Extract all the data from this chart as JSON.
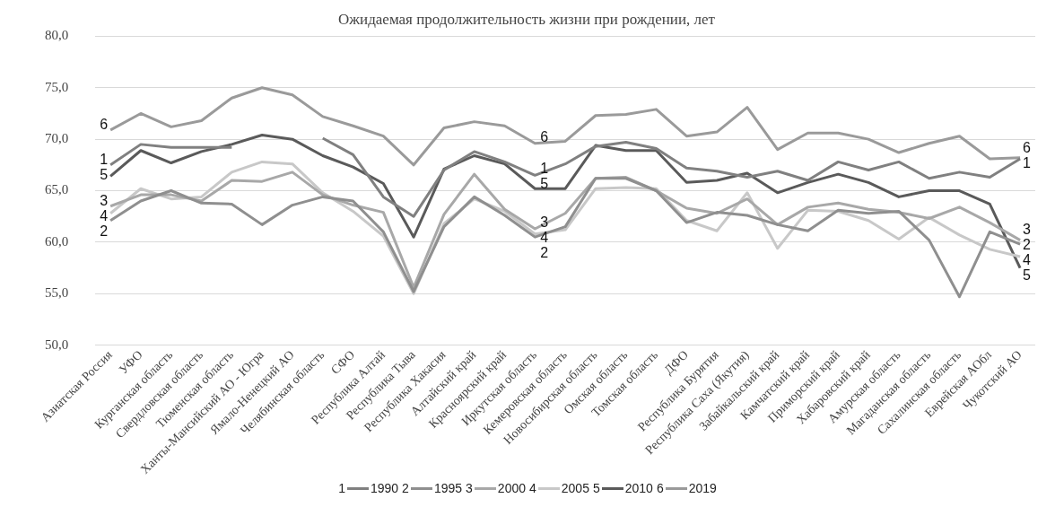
{
  "chart_data": {
    "type": "line",
    "title": "Ожидаемая продолжительность жизни при рождении, лет",
    "categories": [
      "Азиатская Россия",
      "УФО",
      "Курганская область",
      "Свердловская область",
      "Тюменская область",
      "Ханты-Мансийский АО - Югра",
      "Ямало-Ненецкий АО",
      "Челябинская область",
      "СФО",
      "Республика Алтай",
      "Республика Тыва",
      "Республика Хакасия",
      "Алтайский край",
      "Красноярский край",
      "Иркутская область",
      "Кемеровская область",
      "Новосибирская область",
      "Омская область",
      "Томская область",
      "ДФО",
      "Республика Бурятия",
      "Республика Саха (Якутия)",
      "Забайкальский край",
      "Камчатский край",
      "Приморский край",
      "Хабаровский край",
      "Амурская область",
      "Магаданская область",
      "Сахалинская область",
      "Еврейская АОбл",
      "Чукотский АО"
    ],
    "series": [
      {
        "name": "1990",
        "color": "#808080",
        "values": [
          67.5,
          69.5,
          69.2,
          69.2,
          69.2,
          null,
          null,
          70.1,
          68.5,
          64.4,
          62.5,
          67.0,
          68.8,
          67.8,
          66.5,
          67.6,
          69.3,
          69.7,
          69.1,
          67.2,
          66.9,
          66.3,
          66.9,
          66.0,
          67.8,
          67.0,
          67.8,
          66.2,
          66.8,
          66.3,
          68.1
        ]
      },
      {
        "name": "1995",
        "color": "#8f8f8f",
        "values": [
          62.1,
          64.0,
          65.0,
          63.8,
          63.7,
          61.7,
          63.6,
          64.4,
          64.0,
          61.0,
          55.2,
          61.5,
          64.4,
          62.6,
          60.5,
          61.5,
          66.2,
          66.2,
          65.0,
          61.9,
          62.9,
          62.6,
          61.7,
          61.1,
          63.1,
          62.8,
          63.0,
          60.2,
          54.7,
          61.0,
          59.8
        ]
      },
      {
        "name": "2000",
        "color": "#a8a8a8",
        "values": [
          63.5,
          64.6,
          64.6,
          64.0,
          66.0,
          65.9,
          66.8,
          64.6,
          63.6,
          62.9,
          55.6,
          62.7,
          66.6,
          63.2,
          61.3,
          62.8,
          66.2,
          66.3,
          65.0,
          63.3,
          62.8,
          64.2,
          61.7,
          63.4,
          63.8,
          63.2,
          62.9,
          62.3,
          63.4,
          61.9,
          60.2
        ]
      },
      {
        "name": "2005",
        "color": "#c8c8c8",
        "values": [
          62.8,
          65.2,
          64.2,
          64.4,
          66.8,
          67.8,
          67.6,
          64.8,
          63.0,
          60.6,
          55.0,
          61.8,
          64.2,
          63.0,
          60.8,
          61.2,
          65.2,
          65.3,
          65.2,
          62.1,
          61.1,
          64.8,
          59.4,
          63.1,
          63.0,
          62.1,
          60.3,
          62.4,
          60.7,
          59.3,
          58.6
        ]
      },
      {
        "name": "2010",
        "color": "#5a5a5a",
        "values": [
          66.4,
          68.9,
          67.7,
          68.8,
          69.5,
          70.4,
          70.0,
          68.4,
          67.3,
          65.7,
          60.5,
          67.1,
          68.4,
          67.6,
          65.2,
          65.2,
          69.4,
          68.9,
          68.9,
          65.8,
          66.0,
          66.7,
          64.8,
          65.8,
          66.6,
          65.8,
          64.4,
          65.0,
          65.0,
          63.7,
          57.5
        ]
      },
      {
        "name": "2019",
        "color": "#9a9a9a",
        "values": [
          70.9,
          72.5,
          71.2,
          71.8,
          74.0,
          75.0,
          74.3,
          72.2,
          71.3,
          70.3,
          67.5,
          71.1,
          71.7,
          71.3,
          69.6,
          69.8,
          72.3,
          72.4,
          72.9,
          70.3,
          70.7,
          73.1,
          69.0,
          70.6,
          70.6,
          70.0,
          68.7,
          69.6,
          70.3,
          68.1,
          68.2
        ]
      }
    ],
    "ylim": [
      50,
      80
    ],
    "yticks": [
      {
        "value": 50,
        "label": "50,0"
      },
      {
        "value": 55,
        "label": "55,0"
      },
      {
        "value": 60,
        "label": "60,0"
      },
      {
        "value": 65,
        "label": "65,0"
      },
      {
        "value": 70,
        "label": "70,0"
      },
      {
        "value": 75,
        "label": "75,0"
      },
      {
        "value": 80,
        "label": "80,0"
      }
    ],
    "grid": "y",
    "legend": "bottom",
    "marker": "none",
    "line_style": "solid",
    "annotations": [
      {
        "text": "6",
        "x": "Азиатская Россия",
        "y": 70.9
      },
      {
        "text": "1",
        "x": "Азиатская Россия",
        "y": 67.5
      },
      {
        "text": "5",
        "x": "Азиатская Россия",
        "y": 66.4
      },
      {
        "text": "3",
        "x": "Азиатская Россия",
        "y": 63.5
      },
      {
        "text": "4",
        "x": "Азиатская Россия",
        "y": 62.8
      },
      {
        "text": "2",
        "x": "Азиатская Россия",
        "y": 62.1
      },
      {
        "text": "6",
        "x": "Иркутская область",
        "y": 69.6
      },
      {
        "text": "1",
        "x": "Иркутская область",
        "y": 66.5
      },
      {
        "text": "5",
        "x": "Иркутская область",
        "y": 65.2
      },
      {
        "text": "3",
        "x": "Иркутская область",
        "y": 61.3
      },
      {
        "text": "4",
        "x": "Иркутская область",
        "y": 60.8
      },
      {
        "text": "2",
        "x": "Иркутская область",
        "y": 60.5
      },
      {
        "text": "6",
        "x": "Чукотский АО",
        "y": 68.2
      },
      {
        "text": "1",
        "x": "Чукотский АО",
        "y": 68.1
      },
      {
        "text": "3",
        "x": "Чукотский АО",
        "y": 60.2
      },
      {
        "text": "2",
        "x": "Чукотский АО",
        "y": 59.8
      },
      {
        "text": "4",
        "x": "Чукотский АО",
        "y": 58.6
      },
      {
        "text": "5",
        "x": "Чукотский АО",
        "y": 57.5
      },
      "1",
      "2",
      "3",
      "4",
      "5",
      "6"
    ]
  }
}
